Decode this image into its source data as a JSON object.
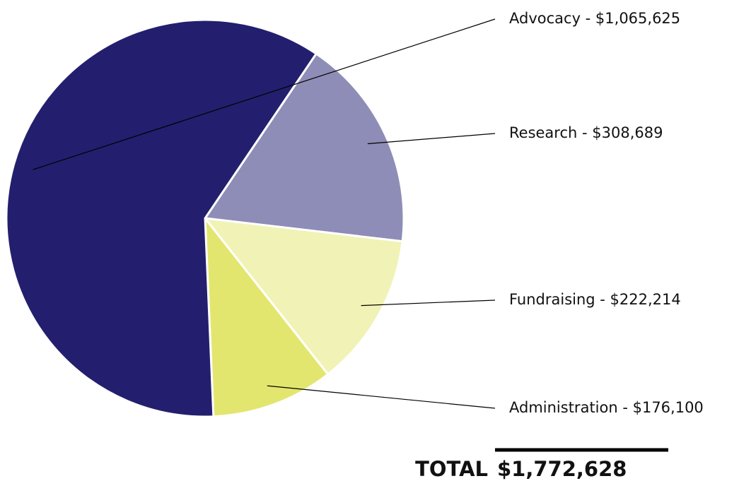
{
  "chart_data": {
    "type": "pie",
    "categories": [
      "Advocacy - $1,065,625",
      "Research - $308,689",
      "Fundraising - $222,214",
      "Administration - $176,100"
    ],
    "values": [
      1065625,
      308689,
      222214,
      176100
    ],
    "colors": [
      "#231f6e",
      "#8e8db7",
      "#f0f3b5",
      "#e3e66e"
    ],
    "total": {
      "label": "TOTAL",
      "value": 1772628,
      "value_label": "$1,772,628"
    }
  }
}
